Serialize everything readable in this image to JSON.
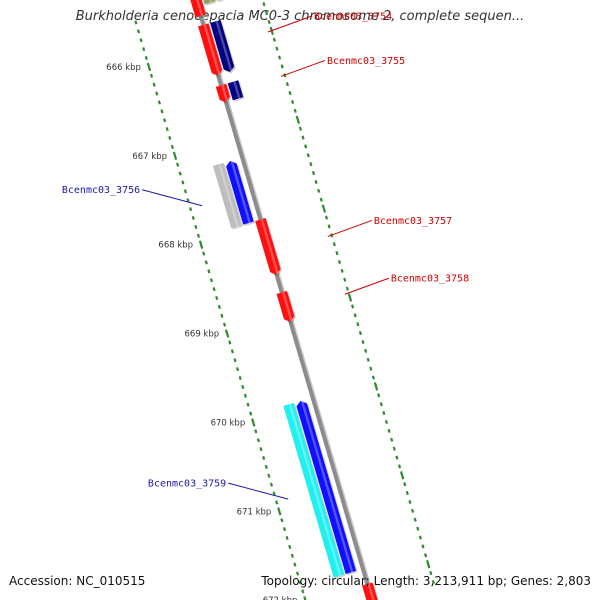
{
  "title": "Burkholderia cenocepacia MC0-3 chromosome 2, complete sequen...",
  "footer": {
    "accession": "Accession: NC_010515",
    "summary": "Topology: circular; Length: 3,213,911 bp; Genes: 2,803"
  },
  "map": {
    "kbp_range": [
      665.45,
      672.2
    ],
    "tick_labels": [
      "666 kbp",
      "667 kbp",
      "668 kbp",
      "669 kbp",
      "670 kbp",
      "671 kbp",
      "672 kbp"
    ],
    "colors": {
      "backbone": "#8c8c8c",
      "tick_mark": "#2e8b2e",
      "label_right": "#cc0000",
      "label_left": "#1a1aaa",
      "feature_red": "#ff1010",
      "feature_navy": "#000080",
      "feature_blue": "#1010ff",
      "feature_cyan": "#22f0f0",
      "feature_gray": "#bdbdbd",
      "feature_olive": "#8ea060"
    },
    "features": [
      {
        "start": 665.4,
        "end": 665.63,
        "lane": 0,
        "color": "#ff1010",
        "arrow": "none"
      },
      {
        "start": 665.4,
        "end": 665.52,
        "lane": 1,
        "color": "#8ea060",
        "arrow": "none"
      },
      {
        "start": 665.4,
        "end": 665.52,
        "lane": 2,
        "color": "#bdbdbd",
        "arrow": "none"
      },
      {
        "start": 665.73,
        "end": 666.3,
        "lane": 0,
        "color": "#ff1010",
        "arrow": "end"
      },
      {
        "start": 665.73,
        "end": 666.3,
        "lane": 1,
        "color": "#000080",
        "arrow": "end"
      },
      {
        "start": 666.41,
        "end": 666.6,
        "lane": 0,
        "color": "#ff1010",
        "arrow": "end"
      },
      {
        "start": 666.41,
        "end": 666.6,
        "lane": 1,
        "color": "#000080",
        "arrow": "none"
      },
      {
        "start": 667.22,
        "end": 667.92,
        "lane": -2,
        "color": "#bdbdbd",
        "arrow": "none"
      },
      {
        "start": 667.22,
        "end": 667.92,
        "lane": -1,
        "color": "#1010ff",
        "arrow": "start"
      },
      {
        "start": 667.92,
        "end": 668.54,
        "lane": 0,
        "color": "#ff1010",
        "arrow": "end"
      },
      {
        "start": 668.74,
        "end": 669.07,
        "lane": 0,
        "color": "#ff1010",
        "arrow": "end"
      },
      {
        "start": 669.92,
        "end": 671.85,
        "lane": -2,
        "color": "#22f0f0",
        "arrow": "none"
      },
      {
        "start": 669.92,
        "end": 671.85,
        "lane": -1,
        "color": "#1010ff",
        "arrow": "start"
      },
      {
        "start": 672.02,
        "end": 672.3,
        "lane": 0,
        "color": "#ff1010",
        "arrow": "none"
      }
    ],
    "gene_labels": [
      {
        "text": "Bcenmc03_3754",
        "side": "right",
        "at": 666.0
      },
      {
        "text": "Bcenmc03_3755",
        "side": "right",
        "at": 666.5
      },
      {
        "text": "Bcenmc03_3756",
        "side": "left",
        "at": 667.6
      },
      {
        "text": "Bcenmc03_3757",
        "side": "right",
        "at": 668.3
      },
      {
        "text": "Bcenmc03_3758",
        "side": "right",
        "at": 668.95
      },
      {
        "text": "Bcenmc03_3759",
        "side": "left",
        "at": 670.9
      }
    ]
  }
}
